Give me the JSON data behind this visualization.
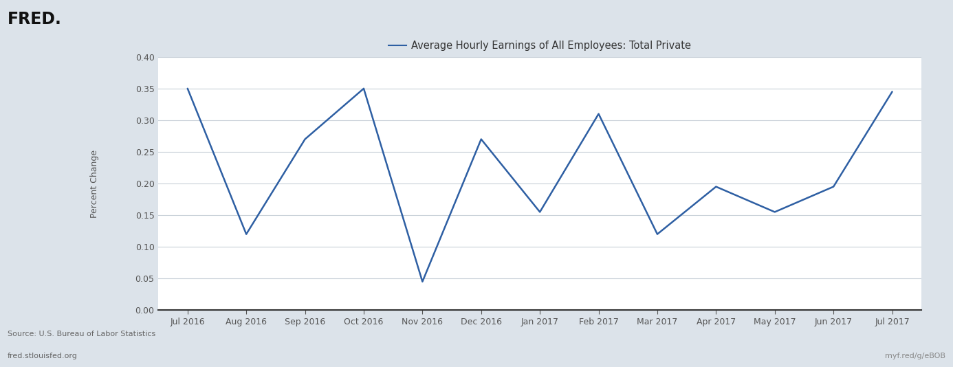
{
  "title": "Average Hourly Earnings of All Employees: Total Private",
  "ylabel": "Percent Change",
  "x_labels": [
    "Jul 2016",
    "Aug 2016",
    "Sep 2016",
    "Oct 2016",
    "Nov 2016",
    "Dec 2016",
    "Jan 2017",
    "Feb 2017",
    "Mar 2017",
    "Apr 2017",
    "May 2017",
    "Jun 2017",
    "Jul 2017"
  ],
  "y_values": [
    0.35,
    0.12,
    0.27,
    0.35,
    0.045,
    0.27,
    0.155,
    0.31,
    0.12,
    0.195,
    0.155,
    0.195,
    0.345
  ],
  "line_color": "#2e5fa3",
  "line_width": 1.8,
  "ylim": [
    0.0,
    0.4
  ],
  "yticks": [
    0.0,
    0.05,
    0.1,
    0.15,
    0.2,
    0.25,
    0.3,
    0.35,
    0.4
  ],
  "background_color": "#dce3ea",
  "plot_bg_color": "#ffffff",
  "grid_color": "#c8d0d8",
  "source_text": "Source: U.S. Bureau of Labor Statistics",
  "url_left": "fred.stlouisfed.org",
  "url_right": "myf.red/g/eBOB",
  "title_fontsize": 10.5,
  "label_fontsize": 9,
  "tick_fontsize": 9,
  "footer_fontsize": 8
}
